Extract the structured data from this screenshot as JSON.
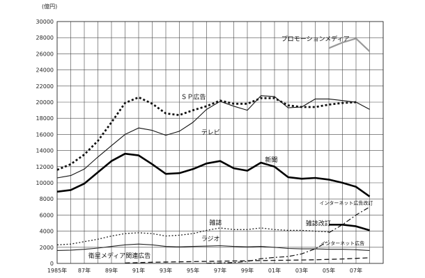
{
  "chart_data": {
    "type": "line",
    "title": "",
    "unit_label": "(億円)",
    "xlabel": "",
    "ylabel": "",
    "ylim": [
      0,
      30000
    ],
    "xlim": [
      1985,
      2009
    ],
    "grid": true,
    "y_ticks": [
      0,
      2000,
      4000,
      6000,
      8000,
      10000,
      12000,
      14000,
      16000,
      18000,
      20000,
      22000,
      24000,
      26000,
      28000,
      30000
    ],
    "y_tick_labels": [
      "0",
      "2000",
      "4000",
      "6000",
      "8000",
      "10000",
      "12000",
      "14000",
      "16000",
      "18000",
      "20000",
      "22000",
      "24000",
      "26000",
      "28000",
      "30000"
    ],
    "x_ticks": [
      1985,
      1987,
      1989,
      1991,
      1993,
      1995,
      1997,
      1999,
      2001,
      2003,
      2005,
      2007
    ],
    "x_tick_labels": [
      "1985年",
      "87年",
      "89年",
      "91年",
      "93年",
      "95年",
      "97年",
      "99年",
      "01年",
      "03年",
      "05年",
      "07年"
    ],
    "series": [
      {
        "name": "SP広告",
        "style": "dotted-bold",
        "color": "#111111",
        "x": [
          1985,
          1986,
          1987,
          1988,
          1989,
          1990,
          1991,
          1992,
          1993,
          1994,
          1995,
          1996,
          1997,
          1998,
          1999,
          2000,
          2001,
          2002,
          2003,
          2004,
          2005,
          2006,
          2007
        ],
        "values": [
          11600,
          12300,
          13500,
          15200,
          17500,
          19900,
          20600,
          19800,
          18600,
          18400,
          19000,
          19500,
          20200,
          19800,
          19800,
          20500,
          20500,
          19600,
          19400,
          19400,
          19700,
          19900,
          20000
        ]
      },
      {
        "name": "テレビ",
        "style": "solid-thin",
        "color": "#111111",
        "x": [
          1985,
          1986,
          1987,
          1988,
          1989,
          1990,
          1991,
          1992,
          1993,
          1994,
          1995,
          1996,
          1997,
          1998,
          1999,
          2000,
          2001,
          2002,
          2003,
          2004,
          2005,
          2006,
          2007,
          2008
        ],
        "values": [
          10600,
          10900,
          11700,
          13200,
          14600,
          16000,
          16800,
          16500,
          15900,
          16400,
          17500,
          19100,
          20100,
          19500,
          19000,
          20800,
          20700,
          19300,
          19400,
          20400,
          20400,
          20200,
          20000,
          19100
        ]
      },
      {
        "name": "新聞",
        "style": "solid-bold",
        "color": "#000000",
        "x": [
          1985,
          1986,
          1987,
          1988,
          1989,
          1990,
          1991,
          1992,
          1993,
          1994,
          1995,
          1996,
          1997,
          1998,
          1999,
          2000,
          2001,
          2002,
          2003,
          2004,
          2005,
          2006,
          2007,
          2008
        ],
        "values": [
          8900,
          9100,
          9900,
          11300,
          12700,
          13600,
          13400,
          12300,
          11100,
          11200,
          11700,
          12400,
          12700,
          11800,
          11500,
          12500,
          12000,
          10700,
          10500,
          10600,
          10400,
          10000,
          9500,
          8300
        ]
      },
      {
        "name": "雑誌",
        "style": "dotted-thin",
        "color": "#222222",
        "x": [
          1985,
          1986,
          1987,
          1988,
          1989,
          1990,
          1991,
          1992,
          1993,
          1994,
          1995,
          1996,
          1997,
          1998,
          1999,
          2000,
          2001,
          2002,
          2003,
          2004,
          2005
        ],
        "values": [
          2300,
          2400,
          2700,
          3000,
          3400,
          3700,
          3800,
          3700,
          3400,
          3500,
          3700,
          4100,
          4400,
          4200,
          4200,
          4400,
          4200,
          4100,
          4100,
          4000,
          3900
        ]
      },
      {
        "name": "雑誌改訂",
        "style": "solid-bold",
        "color": "#000000",
        "x": [
          2005,
          2006,
          2007,
          2008
        ],
        "values": [
          4800,
          4800,
          4600,
          4100
        ]
      },
      {
        "name": "ラジオ",
        "style": "solid-thin",
        "color": "#222222",
        "x": [
          1985,
          1986,
          1987,
          1988,
          1989,
          1990,
          1991,
          1992,
          1993,
          1994,
          1995,
          1996,
          1997,
          1998,
          1999,
          2000,
          2001,
          2002,
          2003,
          2004,
          2005,
          2006,
          2007,
          2008
        ],
        "values": [
          1600,
          1650,
          1750,
          1900,
          2100,
          2300,
          2400,
          2300,
          2100,
          2050,
          2100,
          2150,
          2200,
          2100,
          2050,
          2100,
          2000,
          1850,
          1800,
          1800,
          1750,
          1750,
          1700,
          1600
        ]
      },
      {
        "name": "衛星メディア関連広告",
        "style": "dashed",
        "color": "#111111",
        "x": [
          1990,
          1992,
          1994,
          1996,
          1998,
          2000,
          2002,
          2004,
          2006,
          2008
        ],
        "values": [
          50,
          150,
          200,
          250,
          300,
          350,
          400,
          450,
          550,
          700
        ]
      },
      {
        "name": "インターネット広告",
        "style": "dash-dot",
        "color": "#111111",
        "x": [
          1996,
          1997,
          1998,
          1999,
          2000,
          2001,
          2002,
          2003,
          2004,
          2005
        ],
        "values": [
          20,
          60,
          110,
          240,
          590,
          740,
          850,
          1180,
          1810,
          2800
        ]
      },
      {
        "name": "インターネット広告改訂",
        "style": "dash-dot",
        "color": "#111111",
        "x": [
          2005,
          2006,
          2007,
          2008
        ],
        "values": [
          3800,
          4800,
          6000,
          7000
        ]
      },
      {
        "name": "プロモーションメディア",
        "style": "solid-gray",
        "color": "#9a9a9a",
        "x": [
          2005,
          2006,
          2007,
          2008
        ],
        "values": [
          26700,
          27400,
          27900,
          26300
        ]
      }
    ],
    "annotations": [
      {
        "text": "プロモーションメディア",
        "x": 2001.5,
        "y": 27600,
        "size": 9
      },
      {
        "text": "ＳＰ広告",
        "x": 1994.1,
        "y": 20400,
        "size": 9
      },
      {
        "text": "テレビ",
        "x": 1995.6,
        "y": 16000,
        "size": 9
      },
      {
        "text": "新聞",
        "x": 2000.3,
        "y": 12600,
        "size": 9
      },
      {
        "text": "インターネット広告改訂",
        "x": 2004.3,
        "y": 7300,
        "size": 7
      },
      {
        "text": "雑誌",
        "x": 1996.2,
        "y": 4800,
        "size": 9
      },
      {
        "text": "雑誌改訂",
        "x": 2003.3,
        "y": 4700,
        "size": 9
      },
      {
        "text": "ラジオ",
        "x": 1995.6,
        "y": 2800,
        "size": 9
      },
      {
        "text": "インターネット広告",
        "x": 2004.4,
        "y": 2300,
        "size": 7
      },
      {
        "text": "衛星メディア関連広告",
        "x": 1987.3,
        "y": 700,
        "size": 9
      }
    ]
  }
}
